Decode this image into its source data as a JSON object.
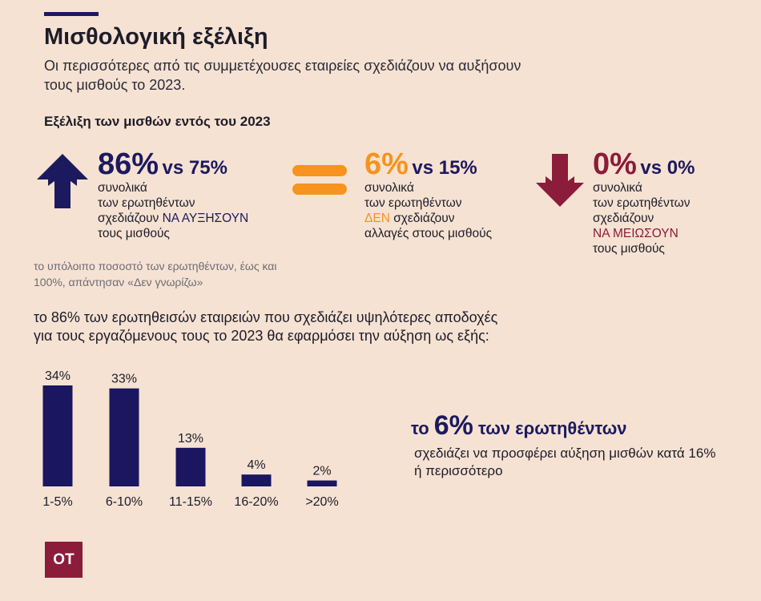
{
  "header": {
    "title": "Μισθολογική εξέλιξη",
    "subtitle": "Οι περισσότερες από τις συμμετέχουσες εταιρείες σχεδιάζουν να αυξήσουν τους μισθούς το 2023."
  },
  "section_title": "Εξέλιξη των μισθών εντός του 2023",
  "colors": {
    "navy": "#1c1a5e",
    "orange": "#f7931e",
    "maroon": "#8b1c3a"
  },
  "stats": [
    {
      "icon": "arrow-up-icon",
      "big": "86%",
      "vs": "vs 75%",
      "line1": "συνολικά",
      "line2": "των ερωτηθέντων",
      "line3_pre": "σχεδιάζουν ",
      "line3_hl": "ΝΑ ΑΥΞΗΣΟΥΝ",
      "line4": "τους μισθούς"
    },
    {
      "icon": "equals-icon",
      "big": "6%",
      "vs": "vs 15%",
      "line1": "συνολικά",
      "line2": "των ερωτηθέντων",
      "line3_hl": "ΔΕΝ",
      "line3_post": " σχεδιάζουν",
      "line4": "αλλαγές στους μισθούς"
    },
    {
      "icon": "arrow-down-icon",
      "big": "0%",
      "vs": "vs 0%",
      "line1": "συνολικά",
      "line2": "των ερωτηθέντων",
      "line3": "σχεδιάζουν",
      "line4_hl": "ΝΑ ΜΕΙΩΣΟΥΝ",
      "line5": "τους μισθούς"
    }
  ],
  "note": "το υπόλοιπο ποσοστό των ερωτηθέντων, έως και 100%, απάντησαν «Δεν γνωρίζω»",
  "intro": "το 86% των ερωτηθεισών εταιρειών που σχεδιάζει υψηλότερες αποδοχές για τους εργαζόμενους τους το 2023 θα εφαρμόσει την αύξηση ως εξής:",
  "chart_data": {
    "type": "bar",
    "categories": [
      "1-5%",
      "6-10%",
      "11-15%",
      "16-20%",
      ">20%"
    ],
    "values": [
      34,
      33,
      13,
      4,
      2
    ],
    "labels": [
      "34%",
      "33%",
      "13%",
      "4%",
      "2%"
    ],
    "ylim": [
      0,
      34
    ],
    "grid": false,
    "bar_color": "#1a1660"
  },
  "callout": {
    "pre": "το ",
    "pct": "6%",
    "post": " των ερωτηθέντων",
    "desc": "σχεδιάζει να προσφέρει αύξηση μισθών κατά 16% ή περισσότερο"
  },
  "logo": {
    "text": "OT"
  }
}
